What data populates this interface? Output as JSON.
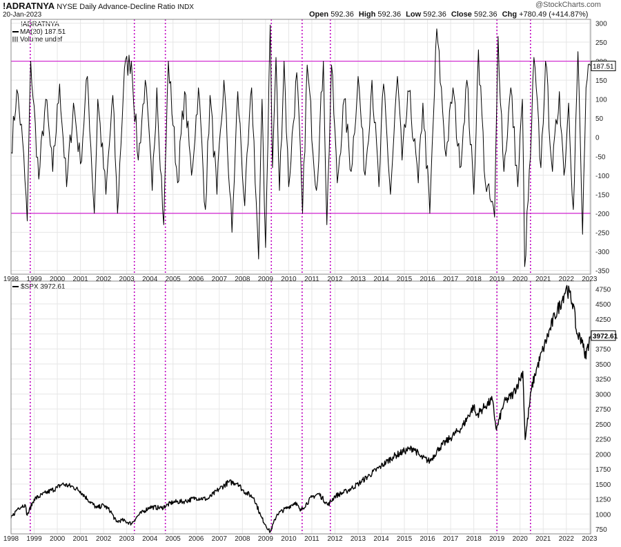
{
  "header": {
    "symbol": "!ADRATNYA",
    "name": "NYSE Daily Advance-Decline Ratio",
    "exchange": "INDX",
    "date": "20-Jan-2023",
    "open_label": "Open",
    "open": "592.36",
    "high_label": "High",
    "high": "592.36",
    "low_label": "Low",
    "low": "592.36",
    "close_label": "Close",
    "close": "592.36",
    "chg_label": "Chg",
    "chg": "+780.49 (+414.87%)",
    "watermark": "@StockCharts.com"
  },
  "top_legend": {
    "line1": "!ADRATNYA",
    "line2": "MA(20) 187.51",
    "line3": "Volume undef"
  },
  "bottom_legend": {
    "line1": "$SPX 3972.61"
  },
  "colors": {
    "series": "#000000",
    "reference_line": "#d020d0",
    "marker_line": "#c000c0",
    "grid": "#e6e6e6",
    "axis_text": "#222222"
  },
  "chart_data": [
    {
      "type": "line",
      "series": [
        {
          "name": "MA(20)",
          "last_value": "187.51",
          "x": [
            1998.0,
            1998.25,
            1998.5,
            1998.7,
            1998.85,
            1999.2,
            1999.5,
            1999.8,
            2000.1,
            2000.4,
            2000.7,
            2001.0,
            2001.3,
            2001.6,
            2001.75,
            2002.1,
            2002.4,
            2002.6,
            2002.9,
            2003.2,
            2003.5,
            2003.8,
            2004.1,
            2004.3,
            2004.6,
            2004.8,
            2005.2,
            2005.5,
            2005.8,
            2006.1,
            2006.4,
            2006.6,
            2006.9,
            2007.2,
            2007.55,
            2007.8,
            2008.1,
            2008.4,
            2008.7,
            2008.85,
            2009.0,
            2009.2,
            2009.3,
            2009.45,
            2009.6,
            2009.8,
            2010.0,
            2010.35,
            2010.6,
            2010.8,
            2011.2,
            2011.5,
            2011.65,
            2011.85,
            2012.1,
            2012.4,
            2012.7,
            2013.0,
            2013.3,
            2013.6,
            2013.9,
            2014.1,
            2014.4,
            2014.7,
            2014.9,
            2015.2,
            2015.6,
            2015.8,
            2016.1,
            2016.4,
            2016.8,
            2017.1,
            2017.4,
            2017.7,
            2018.0,
            2018.2,
            2018.5,
            2018.9,
            2019.05,
            2019.3,
            2019.6,
            2019.9,
            2020.1,
            2020.2,
            2020.45,
            2020.6,
            2020.9,
            2021.1,
            2021.4,
            2021.7,
            2021.9,
            2022.1,
            2022.3,
            2022.5,
            2022.7,
            2022.85,
            2023.05
          ],
          "y": [
            -40,
            125,
            -10,
            -220,
            200,
            -110,
            100,
            -90,
            140,
            -130,
            90,
            -70,
            160,
            -200,
            100,
            -150,
            110,
            -200,
            180,
            200,
            -60,
            150,
            -140,
            130,
            -230,
            200,
            -120,
            120,
            -100,
            130,
            -190,
            110,
            -150,
            150,
            -250,
            120,
            -180,
            130,
            -320,
            100,
            -290,
            295,
            -80,
            210,
            -140,
            200,
            -130,
            170,
            -200,
            190,
            -140,
            200,
            -230,
            190,
            -120,
            100,
            -90,
            160,
            -100,
            150,
            -130,
            140,
            -150,
            160,
            -60,
            120,
            -120,
            90,
            -200,
            285,
            -50,
            130,
            -80,
            150,
            -150,
            230,
            -120,
            -210,
            265,
            -90,
            130,
            -130,
            100,
            -340,
            -50,
            210,
            -80,
            200,
            -90,
            120,
            -100,
            90,
            -190,
            225,
            -255,
            130,
            187.51
          ]
        }
      ],
      "yticks": [
        300,
        250,
        200,
        150,
        100,
        50,
        0,
        -50,
        -100,
        -150,
        -200,
        -250,
        -300,
        -350
      ],
      "reference_lines": [
        200,
        -200
      ],
      "ylim": [
        -360,
        310
      ]
    },
    {
      "type": "line",
      "series": [
        {
          "name": "$SPX",
          "last_value": "3972.61",
          "x": [
            1998.0,
            1998.3,
            1998.6,
            1998.7,
            1999.0,
            1999.5,
            2000.0,
            2000.2,
            2000.7,
            2001.0,
            2001.3,
            2001.7,
            2002.0,
            2002.3,
            2002.55,
            2002.8,
            2003.2,
            2003.5,
            2004.0,
            2004.5,
            2005.0,
            2005.5,
            2006.0,
            2006.5,
            2007.0,
            2007.4,
            2007.8,
            2008.0,
            2008.5,
            2008.8,
            2009.0,
            2009.2,
            2009.5,
            2010.0,
            2010.3,
            2010.5,
            2011.0,
            2011.3,
            2011.7,
            2012.0,
            2012.5,
            2013.0,
            2013.5,
            2014.0,
            2014.5,
            2015.0,
            2015.4,
            2015.7,
            2016.1,
            2016.5,
            2017.0,
            2017.5,
            2018.0,
            2018.1,
            2018.5,
            2018.8,
            2018.98,
            2019.3,
            2019.7,
            2020.0,
            2020.12,
            2020.22,
            2020.5,
            2020.7,
            2021.0,
            2021.5,
            2021.8,
            2022.0,
            2022.3,
            2022.45,
            2022.7,
            2022.8,
            2023.05
          ],
          "y": [
            930,
            1100,
            1160,
            980,
            1250,
            1350,
            1440,
            1500,
            1450,
            1380,
            1250,
            1100,
            1150,
            1050,
            870,
            900,
            840,
            980,
            1120,
            1100,
            1200,
            1210,
            1270,
            1250,
            1420,
            1530,
            1520,
            1400,
            1270,
            960,
            820,
            700,
            1000,
            1120,
            1200,
            1050,
            1280,
            1340,
            1150,
            1300,
            1380,
            1500,
            1650,
            1800,
            1950,
            2050,
            2100,
            1950,
            1880,
            2100,
            2270,
            2450,
            2800,
            2640,
            2800,
            2900,
            2400,
            2850,
            3000,
            3250,
            3380,
            2240,
            3100,
            3400,
            3750,
            4300,
            4550,
            4780,
            4500,
            4000,
            3900,
            3600,
            3972.61
          ]
        }
      ],
      "yticks": [
        4750,
        4500,
        4250,
        4000,
        3750,
        3500,
        3250,
        3000,
        2750,
        2500,
        2250,
        2000,
        1750,
        1500,
        1250,
        1000,
        750
      ],
      "ylim": [
        670,
        4880
      ]
    }
  ],
  "x_axis": {
    "xlim": [
      1998.0,
      2023.05
    ],
    "year_labels": [
      "1998",
      "1999",
      "2000",
      "2001",
      "2002",
      "2003",
      "2004",
      "2005",
      "2006",
      "2007",
      "2008",
      "2009",
      "2010",
      "2011",
      "2012",
      "2013",
      "2014",
      "2015",
      "2016",
      "2017",
      "2018",
      "2019",
      "2020",
      "2021",
      "2022",
      "2023"
    ],
    "marker_dates": [
      1998.83,
      2003.33,
      2004.67,
      2009.25,
      2010.58,
      2011.8,
      2019.0,
      2020.45
    ]
  }
}
